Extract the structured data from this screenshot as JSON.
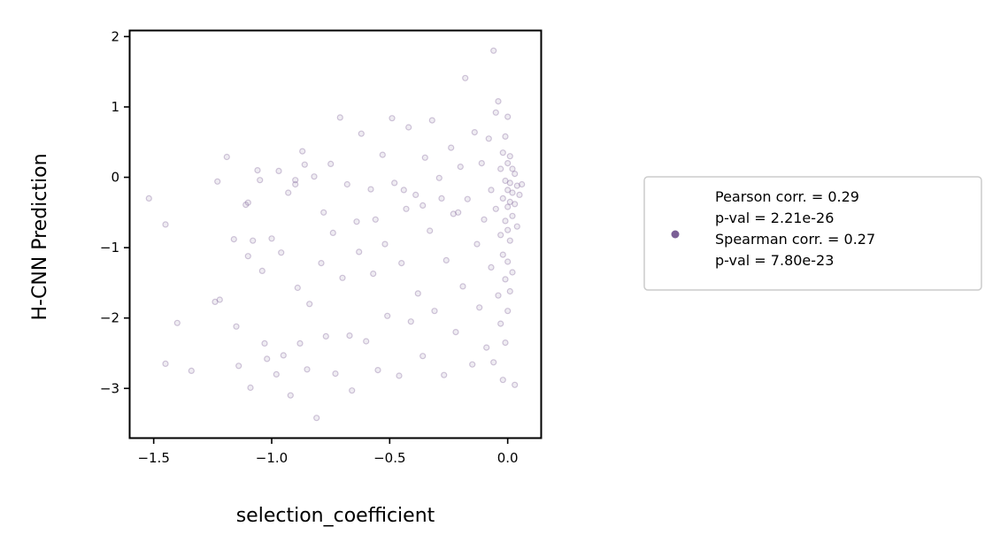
{
  "chart_data": {
    "type": "scatter",
    "title": "",
    "xlabel": "selection_coefficient",
    "ylabel": "H-CNN Prediction",
    "xlim": [
      -1.6,
      0.14
    ],
    "ylim": [
      -3.7,
      2.08
    ],
    "xticks": [
      -1.5,
      -1.0,
      -0.5,
      0.0
    ],
    "xtick_labels": [
      "−1.5",
      "−1.0",
      "−0.5",
      "0.0"
    ],
    "yticks": [
      2,
      1,
      0,
      -1,
      -2,
      -3
    ],
    "ytick_labels": [
      "2",
      "1",
      "0",
      "−1",
      "−2",
      "−3"
    ],
    "grid": false,
    "legend_position": "right, outside",
    "marker_color": "#7b5f96",
    "series": [
      {
        "name": "Pearson corr. = 0.29\np-val = 2.21e-26\nSpearman corr. = 0.27\np-val = 7.80e-23",
        "points": [
          [
            -1.52,
            -0.3
          ],
          [
            -1.45,
            -0.67
          ],
          [
            -1.45,
            -2.65
          ],
          [
            -1.4,
            -2.07
          ],
          [
            -1.34,
            -2.75
          ],
          [
            -1.24,
            -1.77
          ],
          [
            -1.23,
            -0.06
          ],
          [
            -1.22,
            -1.74
          ],
          [
            -1.19,
            0.29
          ],
          [
            -1.16,
            -0.88
          ],
          [
            -1.15,
            -2.12
          ],
          [
            -1.14,
            -2.68
          ],
          [
            -1.11,
            -0.39
          ],
          [
            -1.1,
            -0.36
          ],
          [
            -1.1,
            -1.12
          ],
          [
            -1.09,
            -2.99
          ],
          [
            -1.08,
            -0.9
          ],
          [
            -1.05,
            -0.04
          ],
          [
            -1.04,
            -1.33
          ],
          [
            -1.03,
            -2.36
          ],
          [
            -1.02,
            -2.58
          ],
          [
            -1.0,
            -0.87
          ],
          [
            -0.98,
            -2.8
          ],
          [
            -0.97,
            0.09
          ],
          [
            -0.96,
            -1.07
          ],
          [
            -0.95,
            -2.53
          ],
          [
            -0.93,
            -0.22
          ],
          [
            -0.92,
            -3.1
          ],
          [
            -0.9,
            -0.04
          ],
          [
            -0.89,
            -1.57
          ],
          [
            -0.88,
            -2.36
          ],
          [
            -0.87,
            0.37
          ],
          [
            -0.85,
            -2.73
          ],
          [
            -0.84,
            -1.8
          ],
          [
            -0.82,
            0.01
          ],
          [
            -0.81,
            -3.42
          ],
          [
            -0.79,
            -1.22
          ],
          [
            -0.77,
            -2.26
          ],
          [
            -0.75,
            0.19
          ],
          [
            -0.74,
            -0.79
          ],
          [
            -0.73,
            -2.79
          ],
          [
            -0.71,
            0.85
          ],
          [
            -0.7,
            -1.43
          ],
          [
            -0.68,
            -0.1
          ],
          [
            -0.67,
            -2.25
          ],
          [
            -0.66,
            -3.03
          ],
          [
            -0.64,
            -0.63
          ],
          [
            -0.63,
            -1.06
          ],
          [
            -0.62,
            0.62
          ],
          [
            -0.6,
            -2.33
          ],
          [
            -0.58,
            -0.17
          ],
          [
            -0.57,
            -1.37
          ],
          [
            -0.55,
            -2.74
          ],
          [
            -0.53,
            0.32
          ],
          [
            -0.52,
            -0.95
          ],
          [
            -0.51,
            -1.97
          ],
          [
            -0.49,
            0.84
          ],
          [
            -0.48,
            -0.08
          ],
          [
            -0.46,
            -2.82
          ],
          [
            -0.45,
            -1.22
          ],
          [
            -0.43,
            -0.45
          ],
          [
            -0.42,
            0.71
          ],
          [
            -0.41,
            -2.05
          ],
          [
            -0.39,
            -0.25
          ],
          [
            -0.38,
            -1.65
          ],
          [
            -0.36,
            -2.54
          ],
          [
            -0.35,
            0.28
          ],
          [
            -0.33,
            -0.76
          ],
          [
            -0.32,
            0.81
          ],
          [
            -0.31,
            -1.9
          ],
          [
            -0.29,
            -0.01
          ],
          [
            -0.27,
            -2.81
          ],
          [
            -0.26,
            -1.18
          ],
          [
            -0.24,
            0.42
          ],
          [
            -0.23,
            -0.52
          ],
          [
            -0.22,
            -2.2
          ],
          [
            -0.2,
            0.15
          ],
          [
            -0.19,
            -1.55
          ],
          [
            -0.18,
            1.41
          ],
          [
            -0.17,
            -0.31
          ],
          [
            -0.15,
            -2.66
          ],
          [
            -0.14,
            0.64
          ],
          [
            -0.13,
            -0.95
          ],
          [
            -0.12,
            -1.85
          ],
          [
            -0.11,
            0.2
          ],
          [
            -0.1,
            -0.6
          ],
          [
            -0.09,
            -2.42
          ],
          [
            -0.08,
            0.55
          ],
          [
            -0.07,
            -0.18
          ],
          [
            -0.07,
            -1.28
          ],
          [
            -0.06,
            -2.63
          ],
          [
            -0.05,
            0.92
          ],
          [
            -0.05,
            -0.45
          ],
          [
            -0.04,
            -1.68
          ],
          [
            -0.04,
            1.08
          ],
          [
            -0.03,
            0.12
          ],
          [
            -0.03,
            -0.82
          ],
          [
            -0.03,
            -2.08
          ],
          [
            -0.02,
            0.35
          ],
          [
            -0.02,
            -0.3
          ],
          [
            -0.02,
            -1.1
          ],
          [
            -0.02,
            -2.88
          ],
          [
            -0.01,
            0.58
          ],
          [
            -0.01,
            -0.05
          ],
          [
            -0.01,
            -0.62
          ],
          [
            -0.01,
            -1.45
          ],
          [
            -0.01,
            -2.35
          ],
          [
            0.0,
            0.86
          ],
          [
            0.0,
            0.2
          ],
          [
            0.0,
            -0.18
          ],
          [
            0.0,
            -0.42
          ],
          [
            0.0,
            -0.75
          ],
          [
            0.0,
            -1.2
          ],
          [
            0.0,
            -1.9
          ],
          [
            0.01,
            0.3
          ],
          [
            0.01,
            -0.08
          ],
          [
            0.01,
            -0.35
          ],
          [
            0.01,
            -0.9
          ],
          [
            0.01,
            -1.62
          ],
          [
            0.02,
            0.12
          ],
          [
            0.02,
            -0.22
          ],
          [
            0.02,
            -0.55
          ],
          [
            0.02,
            -1.35
          ],
          [
            0.03,
            0.05
          ],
          [
            0.03,
            -0.38
          ],
          [
            0.03,
            -2.95
          ],
          [
            0.04,
            -0.12
          ],
          [
            0.04,
            -0.7
          ],
          [
            0.05,
            -0.25
          ],
          [
            0.06,
            -0.1
          ],
          [
            -0.06,
            1.8
          ],
          [
            -1.06,
            0.1
          ],
          [
            -0.9,
            -0.1
          ],
          [
            -0.86,
            0.18
          ],
          [
            -0.78,
            -0.5
          ],
          [
            -0.56,
            -0.6
          ],
          [
            -0.44,
            -0.18
          ],
          [
            -0.36,
            -0.4
          ],
          [
            -0.28,
            -0.3
          ],
          [
            -0.21,
            -0.5
          ]
        ]
      }
    ]
  }
}
